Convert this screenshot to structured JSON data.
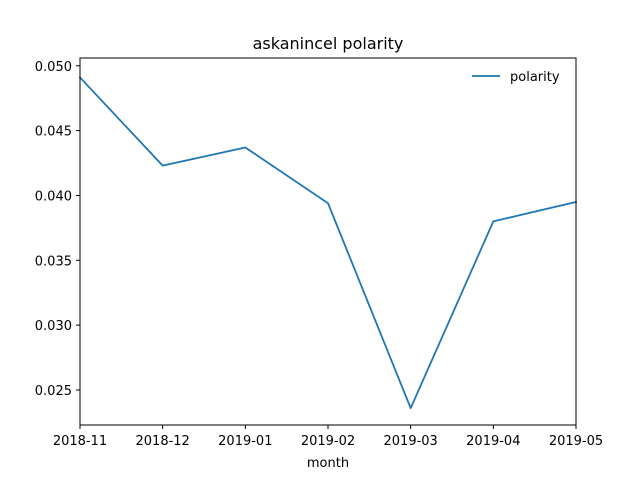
{
  "chart_data": {
    "type": "line",
    "title": "askanincel polarity",
    "xlabel": "month",
    "ylabel": "",
    "x": [
      "2018-11",
      "2018-12",
      "2019-01",
      "2019-02",
      "2019-03",
      "2019-04",
      "2019-05"
    ],
    "series": [
      {
        "name": "polarity",
        "color": "#1f77b4",
        "values": [
          0.0491,
          0.0423,
          0.0437,
          0.0394,
          0.0236,
          0.038,
          0.0395
        ]
      }
    ],
    "ylim": [
      0.0223,
      0.0506
    ],
    "yticks": [
      "0.025",
      "0.030",
      "0.035",
      "0.040",
      "0.045",
      "0.050"
    ],
    "ytick_values": [
      0.025,
      0.03,
      0.035,
      0.04,
      0.045,
      0.05
    ],
    "grid": false,
    "legend_position": "top-right"
  }
}
